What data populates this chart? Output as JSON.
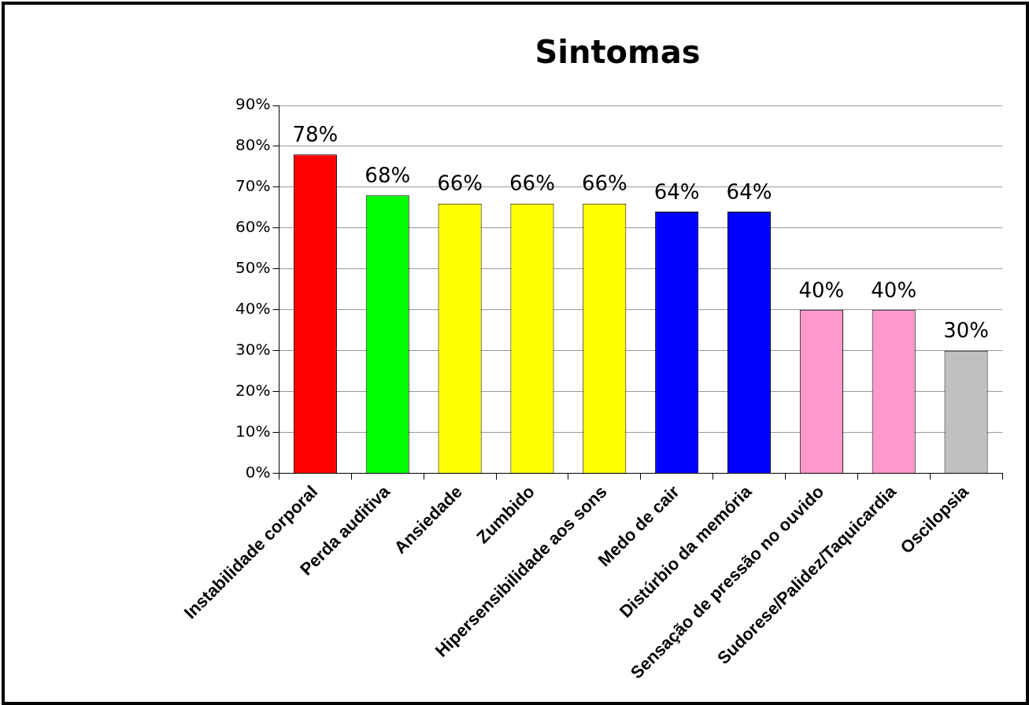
{
  "chart_data": {
    "type": "bar",
    "title": "Sintomas",
    "categories": [
      "Instabilidade corporal",
      "Perda auditiva",
      "Ansiedade",
      "Zumbido",
      "Hipersensibilidade aos sons",
      "Medo de cair",
      "Distúrbio da memória",
      "Sensação de pressão no ouvido",
      "Sudorese/Palidez/Taquicardia",
      "Oscilopsia"
    ],
    "values": [
      78,
      68,
      66,
      66,
      66,
      64,
      64,
      40,
      40,
      30
    ],
    "colors": [
      "#ff0000",
      "#00ff00",
      "#ffff00",
      "#ffff00",
      "#ffff00",
      "#0000ff",
      "#0000ff",
      "#ff99cc",
      "#ff99cc",
      "#c0c0c0"
    ],
    "value_labels": [
      "78%",
      "68%",
      "66%",
      "66%",
      "66%",
      "64%",
      "64%",
      "40%",
      "40%",
      "30%"
    ],
    "ylim": [
      0,
      90
    ],
    "yticks": [
      {
        "value": 0,
        "label": "0%"
      },
      {
        "value": 10,
        "label": "10%"
      },
      {
        "value": 20,
        "label": "20%"
      },
      {
        "value": 30,
        "label": "30%"
      },
      {
        "value": 40,
        "label": "40%"
      },
      {
        "value": 50,
        "label": "50%"
      },
      {
        "value": 60,
        "label": "60%"
      },
      {
        "value": 70,
        "label": "70%"
      },
      {
        "value": 80,
        "label": "80%"
      },
      {
        "value": 90,
        "label": "90%"
      }
    ],
    "grid": "y",
    "legend": false
  }
}
